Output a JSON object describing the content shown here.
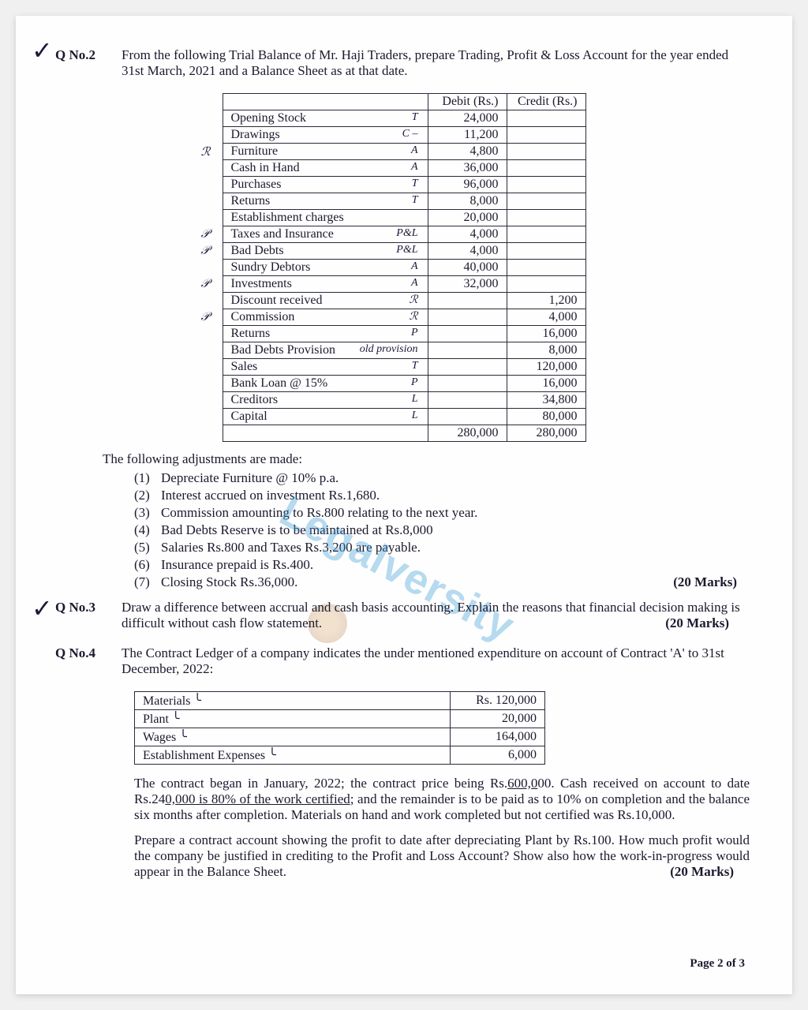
{
  "q2": {
    "label": "Q No.2",
    "text": "From the following Trial Balance of Mr. Haji Traders, prepare Trading, Profit & Loss Account for the year ended 31st March, 2021 and a Balance Sheet as at that date.",
    "table": {
      "headers": [
        "",
        "Debit (Rs.)",
        "Credit (Rs.)"
      ],
      "rows": [
        {
          "desc": "Opening Stock",
          "annotL": "",
          "annotR": "T",
          "debit": "24,000",
          "credit": ""
        },
        {
          "desc": "Drawings",
          "annotL": "",
          "annotR": "C –",
          "debit": "11,200",
          "credit": ""
        },
        {
          "desc": "Furniture",
          "annotL": "ℛ",
          "annotR": "A",
          "debit": "4,800",
          "credit": ""
        },
        {
          "desc": "Cash in Hand",
          "annotL": "",
          "annotR": "A",
          "debit": "36,000",
          "credit": ""
        },
        {
          "desc": "Purchases",
          "annotL": "",
          "annotR": "T",
          "debit": "96,000",
          "credit": ""
        },
        {
          "desc": "Returns",
          "annotL": "",
          "annotR": "T",
          "debit": "8,000",
          "credit": ""
        },
        {
          "desc": "Establishment charges",
          "annotL": "",
          "annotR": "",
          "debit": "20,000",
          "credit": ""
        },
        {
          "desc": "Taxes and Insurance",
          "annotL": "𝒫",
          "annotR": "P&L",
          "debit": "4,000",
          "credit": ""
        },
        {
          "desc": "Bad Debts",
          "annotL": "𝒫",
          "annotR": "P&L",
          "debit": "4,000",
          "credit": ""
        },
        {
          "desc": "Sundry Debtors",
          "annotL": "",
          "annotR": "A",
          "debit": "40,000",
          "credit": ""
        },
        {
          "desc": "Investments",
          "annotL": "𝒫",
          "annotR": "A",
          "debit": "32,000",
          "credit": ""
        },
        {
          "desc": "Discount received",
          "annotL": "",
          "annotR": "ℛ",
          "debit": "",
          "credit": "1,200"
        },
        {
          "desc": "Commission",
          "annotL": "𝒫",
          "annotR": "ℛ",
          "debit": "",
          "credit": "4,000"
        },
        {
          "desc": "Returns",
          "annotL": "",
          "annotR": "P",
          "debit": "",
          "credit": "16,000"
        },
        {
          "desc": "Bad Debts Provision",
          "annotL": "",
          "annotR": "old provision",
          "debit": "",
          "credit": "8,000"
        },
        {
          "desc": "Sales",
          "annotL": "",
          "annotR": "T",
          "debit": "",
          "credit": "120,000"
        },
        {
          "desc": "Bank Loan @ 15%",
          "annotL": "",
          "annotR": "P",
          "debit": "",
          "credit": "16,000"
        },
        {
          "desc": "Creditors",
          "annotL": "",
          "annotR": "L",
          "debit": "",
          "credit": "34,800"
        },
        {
          "desc": "Capital",
          "annotL": "",
          "annotR": "L",
          "debit": "",
          "credit": "80,000"
        }
      ],
      "totals": {
        "debit": "280,000",
        "credit": "280,000"
      }
    },
    "adj_intro": "The following adjustments are made:",
    "adjustments": [
      "Depreciate Furniture @ 10% p.a.",
      "Interest accrued on investment Rs.1,680.",
      "Commission amounting to Rs.800 relating to the next year.",
      "Bad Debts Reserve is to be maintained at Rs.8,000",
      "Salaries Rs.800 and Taxes Rs.3,200 are payable.",
      "Insurance prepaid is Rs.400.",
      "Closing Stock Rs.36,000."
    ],
    "marks": "(20 Marks)"
  },
  "q3": {
    "label": "Q No.3",
    "text": "Draw a difference between accrual and cash basis accounting. Explain the reasons that financial decision making is difficult without cash flow statement.",
    "marks": "(20 Marks)"
  },
  "q4": {
    "label": "Q No.4",
    "intro": "The Contract Ledger of a company indicates the under mentioned expenditure on account of Contract 'A' to 31st December, 2022:",
    "table": {
      "rows": [
        {
          "desc": "Materials",
          "val": "Rs. 120,000"
        },
        {
          "desc": "Plant",
          "val": "20,000"
        },
        {
          "desc": "Wages",
          "val": "164,000"
        },
        {
          "desc": "Establishment Expenses",
          "val": "6,000"
        }
      ]
    },
    "para1": "The contract began in January, 2022; the contract price being Rs.600,000. Cash received on account to date Rs.240,000 is 80% of the work certified; and the remainder is to be paid as to 10% on completion and the balance six months after completion. Materials on hand and work completed but not certified was Rs.10,000.",
    "para2": "Prepare a contract account showing the profit to date after depreciating Plant by Rs.100. How much profit would the company be justified in crediting to the Profit and Loss Account? Show also how the work-in-progress would appear in the Balance Sheet.",
    "marks": "(20 Marks)"
  },
  "watermark": "Legalversity",
  "footer": "Page 2 of 3"
}
